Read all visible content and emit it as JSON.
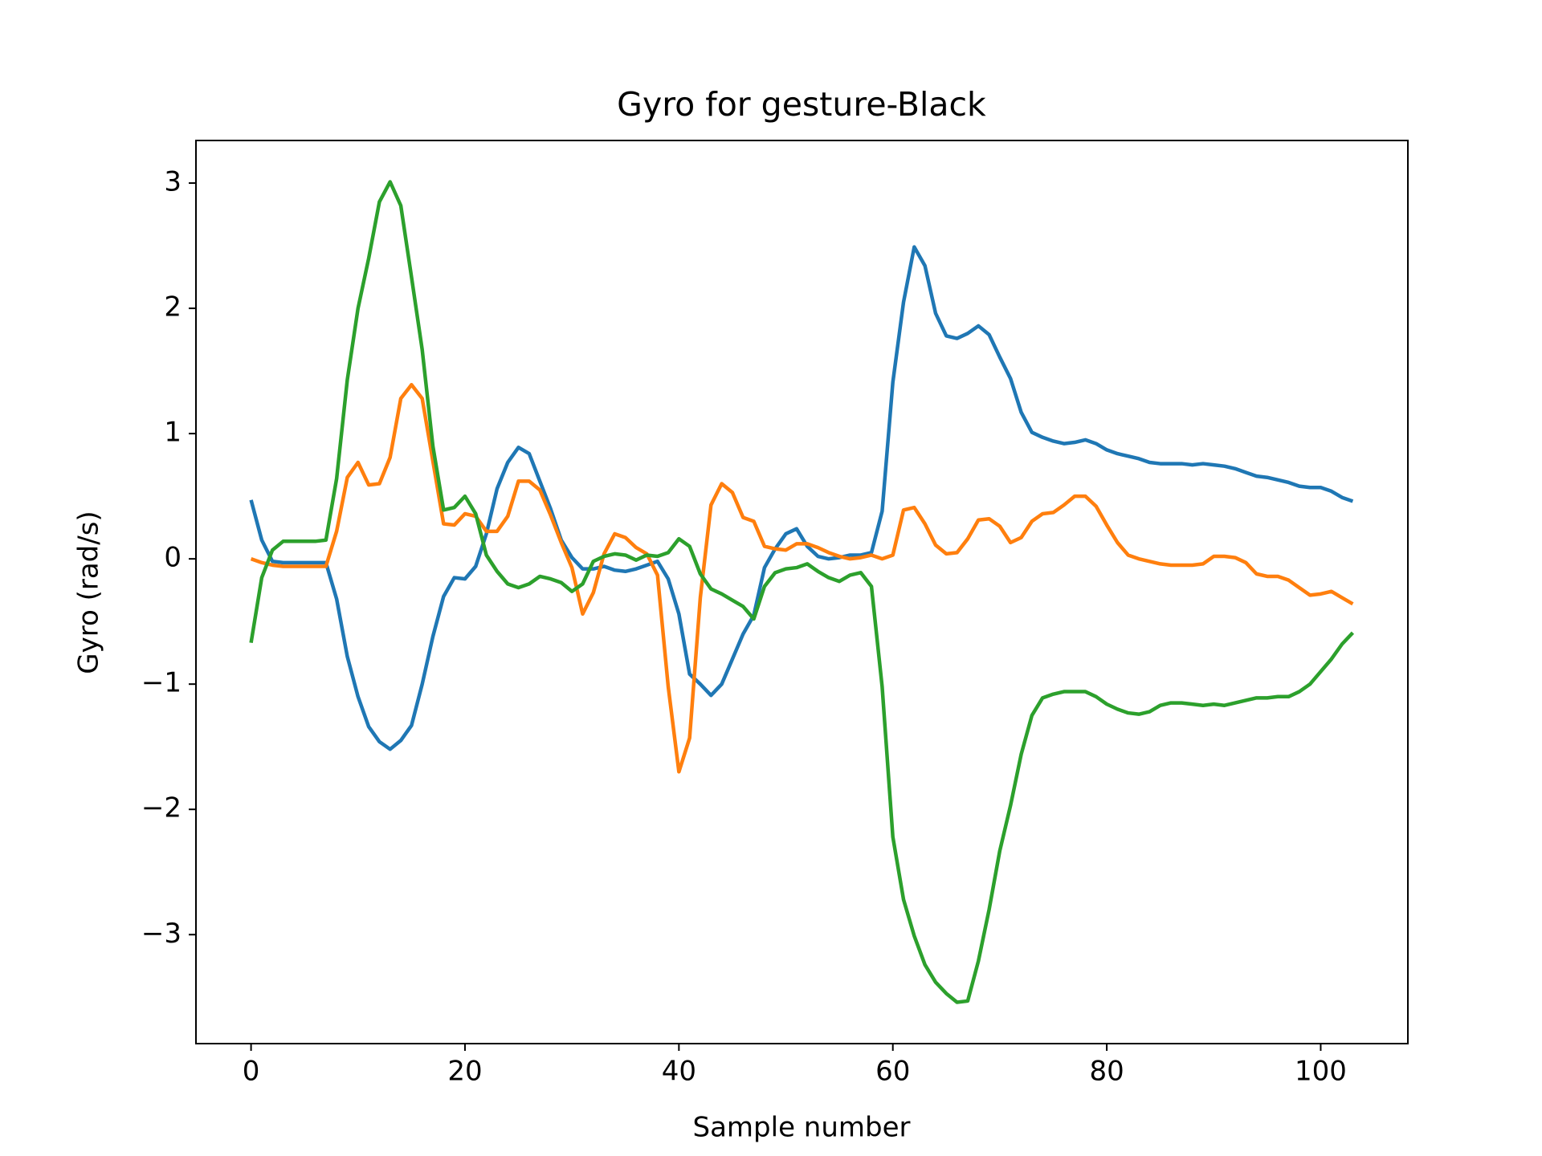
{
  "chart_data": {
    "type": "line",
    "title": "Gyro for gesture-Black",
    "x_label": "Sample number",
    "y_label": "Gyro  (rad/s)",
    "x": [
      0,
      1,
      2,
      3,
      4,
      5,
      6,
      7,
      8,
      9,
      10,
      11,
      12,
      13,
      14,
      15,
      16,
      17,
      18,
      19,
      20,
      21,
      22,
      23,
      24,
      25,
      26,
      27,
      28,
      29,
      30,
      31,
      32,
      33,
      34,
      35,
      36,
      37,
      38,
      39,
      40,
      41,
      42,
      43,
      44,
      45,
      46,
      47,
      48,
      49,
      50,
      51,
      52,
      53,
      54,
      55,
      56,
      57,
      58,
      59,
      60,
      61,
      62,
      63,
      64,
      65,
      66,
      67,
      68,
      69,
      70,
      71,
      72,
      73,
      74,
      75,
      76,
      77,
      78,
      79,
      80,
      81,
      82,
      83,
      84,
      85,
      86,
      87,
      88,
      89,
      90,
      91,
      92,
      93,
      94,
      95,
      96,
      97,
      98,
      99,
      100,
      101,
      102,
      103
    ],
    "series": [
      {
        "color": "#1f77b4",
        "values": [
          0.47,
          0.15,
          -0.02,
          -0.03,
          -0.03,
          -0.03,
          -0.03,
          -0.03,
          -0.32,
          -0.78,
          -1.1,
          -1.34,
          -1.46,
          -1.52,
          -1.45,
          -1.33,
          -1.0,
          -0.62,
          -0.3,
          -0.15,
          -0.16,
          -0.06,
          0.2,
          0.56,
          0.77,
          0.89,
          0.84,
          0.62,
          0.4,
          0.15,
          0.01,
          -0.08,
          -0.08,
          -0.06,
          -0.09,
          -0.1,
          -0.08,
          -0.05,
          -0.02,
          -0.16,
          -0.44,
          -0.92,
          -1.0,
          -1.09,
          -1.0,
          -0.8,
          -0.6,
          -0.45,
          -0.07,
          0.08,
          0.2,
          0.24,
          0.1,
          0.02,
          0.0,
          0.01,
          0.03,
          0.03,
          0.05,
          0.38,
          1.41,
          2.05,
          2.49,
          2.34,
          1.96,
          1.78,
          1.76,
          1.8,
          1.86,
          1.79,
          1.61,
          1.44,
          1.17,
          1.01,
          0.97,
          0.94,
          0.92,
          0.93,
          0.95,
          0.92,
          0.87,
          0.84,
          0.82,
          0.8,
          0.77,
          0.76,
          0.76,
          0.76,
          0.75,
          0.76,
          0.75,
          0.74,
          0.72,
          0.69,
          0.66,
          0.65,
          0.63,
          0.61,
          0.58,
          0.57,
          0.57,
          0.54,
          0.49,
          0.46
        ]
      },
      {
        "color": "#ff7f0e",
        "values": [
          0.0,
          -0.03,
          -0.05,
          -0.06,
          -0.06,
          -0.06,
          -0.06,
          -0.06,
          0.22,
          0.65,
          0.77,
          0.59,
          0.6,
          0.81,
          1.28,
          1.39,
          1.28,
          0.78,
          0.28,
          0.27,
          0.36,
          0.34,
          0.22,
          0.22,
          0.34,
          0.62,
          0.62,
          0.55,
          0.35,
          0.13,
          -0.07,
          -0.44,
          -0.27,
          0.04,
          0.2,
          0.17,
          0.09,
          0.04,
          -0.13,
          -1.02,
          -1.7,
          -1.43,
          -0.31,
          0.43,
          0.6,
          0.53,
          0.33,
          0.3,
          0.1,
          0.08,
          0.07,
          0.12,
          0.12,
          0.09,
          0.05,
          0.02,
          0.0,
          0.01,
          0.03,
          0.0,
          0.03,
          0.39,
          0.41,
          0.28,
          0.11,
          0.04,
          0.05,
          0.16,
          0.31,
          0.32,
          0.26,
          0.13,
          0.17,
          0.3,
          0.36,
          0.37,
          0.43,
          0.5,
          0.5,
          0.42,
          0.27,
          0.13,
          0.03,
          0.0,
          -0.02,
          -0.04,
          -0.05,
          -0.05,
          -0.05,
          -0.04,
          0.02,
          0.02,
          0.01,
          -0.03,
          -0.12,
          -0.14,
          -0.14,
          -0.17,
          -0.23,
          -0.29,
          -0.28,
          -0.26,
          -0.31,
          -0.36
        ]
      },
      {
        "color": "#2ca02c",
        "values": [
          -0.67,
          -0.15,
          0.07,
          0.14,
          0.14,
          0.14,
          0.14,
          0.15,
          0.64,
          1.43,
          2.0,
          2.4,
          2.85,
          3.01,
          2.82,
          2.25,
          1.67,
          0.9,
          0.39,
          0.41,
          0.5,
          0.36,
          0.03,
          -0.1,
          -0.2,
          -0.23,
          -0.2,
          -0.14,
          -0.16,
          -0.19,
          -0.26,
          -0.2,
          -0.02,
          0.02,
          0.04,
          0.03,
          -0.01,
          0.03,
          0.02,
          0.05,
          0.16,
          0.1,
          -0.12,
          -0.24,
          -0.28,
          -0.33,
          -0.38,
          -0.48,
          -0.22,
          -0.11,
          -0.08,
          -0.07,
          -0.04,
          -0.1,
          -0.15,
          -0.18,
          -0.13,
          -0.11,
          -0.22,
          -1.02,
          -2.22,
          -2.72,
          -3.01,
          -3.24,
          -3.38,
          -3.47,
          -3.54,
          -3.53,
          -3.21,
          -2.8,
          -2.33,
          -1.97,
          -1.56,
          -1.25,
          -1.11,
          -1.08,
          -1.06,
          -1.06,
          -1.06,
          -1.1,
          -1.16,
          -1.2,
          -1.23,
          -1.24,
          -1.22,
          -1.17,
          -1.15,
          -1.15,
          -1.16,
          -1.17,
          -1.16,
          -1.17,
          -1.15,
          -1.13,
          -1.11,
          -1.11,
          -1.1,
          -1.1,
          -1.06,
          -1.0,
          -0.9,
          -0.8,
          -0.68,
          -0.59
        ]
      }
    ],
    "xlim": [
      -5.15,
      108.15
    ],
    "ylim": [
      -3.87,
      3.34
    ],
    "xticks": [
      0,
      20,
      40,
      60,
      80,
      100
    ],
    "yticks": [
      {
        "value": -3,
        "label": "−3"
      },
      {
        "value": -2,
        "label": "−2"
      },
      {
        "value": -1,
        "label": "−1"
      },
      0,
      1,
      2,
      3
    ]
  }
}
